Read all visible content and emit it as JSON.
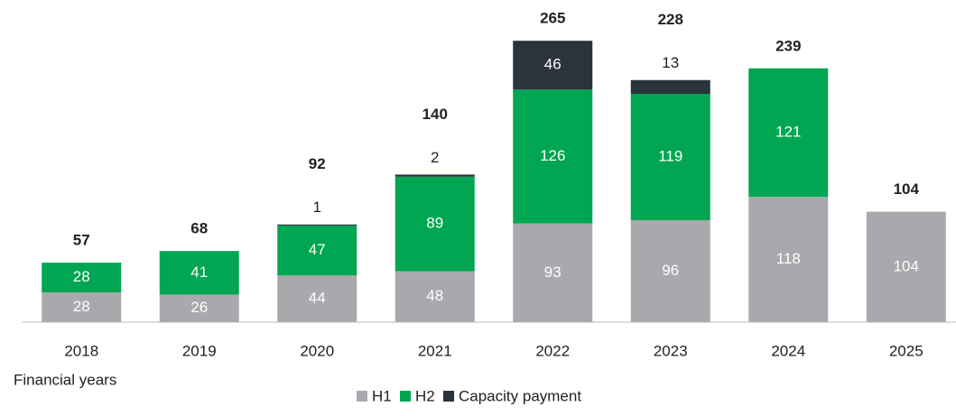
{
  "chart_data": {
    "type": "stacked_bar",
    "x_label": "Financial years",
    "categories": [
      "2018",
      "2019",
      "2020",
      "2021",
      "2022",
      "2023",
      "2024",
      "2025"
    ],
    "series": [
      {
        "name": "H1",
        "color": "#a7a9ac",
        "values": [
          28,
          26,
          44,
          48,
          93,
          96,
          118,
          104
        ]
      },
      {
        "name": "H2",
        "color": "#00a651",
        "values": [
          28,
          41,
          47,
          89,
          126,
          119,
          121,
          null
        ]
      },
      {
        "name": "Capacity payment",
        "color": "#2b333d",
        "values": [
          null,
          null,
          1,
          2,
          46,
          13,
          null,
          null
        ]
      }
    ],
    "totals": [
      57,
      68,
      92,
      140,
      265,
      228,
      239,
      104
    ],
    "ylim": [
      0,
      300
    ],
    "legend": "bottom"
  }
}
